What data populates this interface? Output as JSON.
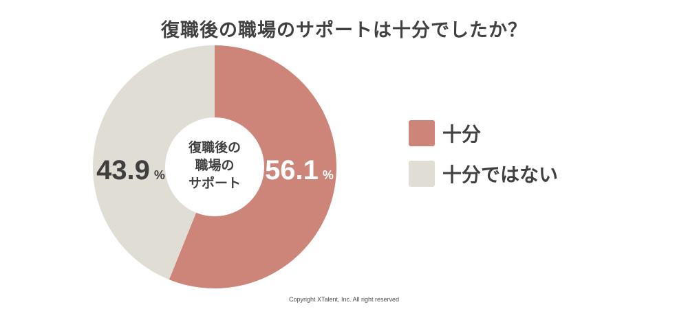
{
  "title": "復職後の職場のサポートは十分でしたか？",
  "center_label": [
    "復職後の",
    "職場の",
    "サポート"
  ],
  "copyright": "Copyright XTalent, Inc. All right reserved",
  "colors": {
    "sufficient": "#cd857a",
    "insufficient": "#e0ddd4",
    "center_fill": "#ffffff",
    "text": "#404040"
  },
  "chart_data": {
    "type": "pie",
    "variant": "donut",
    "title": "復職後の職場のサポートは十分でしたか？",
    "labels": [
      "十分",
      "十分ではない"
    ],
    "values": [
      56.1,
      43.9
    ],
    "unit": "%",
    "data_labels": [
      "56.1",
      "43.9"
    ],
    "legend_position": "right"
  }
}
